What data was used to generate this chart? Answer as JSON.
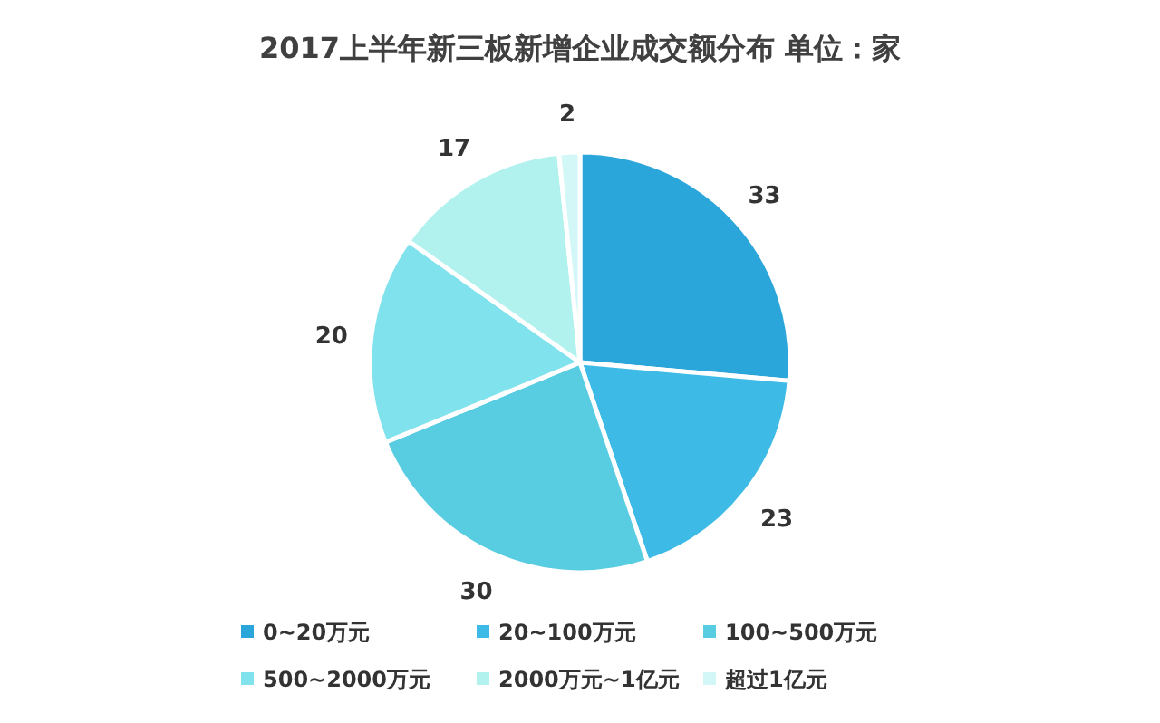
{
  "chart_data": {
    "type": "pie",
    "title": "2017上半年新三板新增企业成交额分布  单位：家",
    "categories": [
      "0~20万元",
      "20~100万元",
      "100~500万元",
      "500~2000万元",
      "2000万元~1亿元",
      "超过1亿元"
    ],
    "values": [
      33,
      23,
      30,
      20,
      17,
      2
    ],
    "colors": [
      "#2ba6db",
      "#3dbbe6",
      "#58cde2",
      "#7fe2ec",
      "#b2f2ee",
      "#d2f7f6"
    ],
    "data_labels": true,
    "legend": "bottom"
  }
}
